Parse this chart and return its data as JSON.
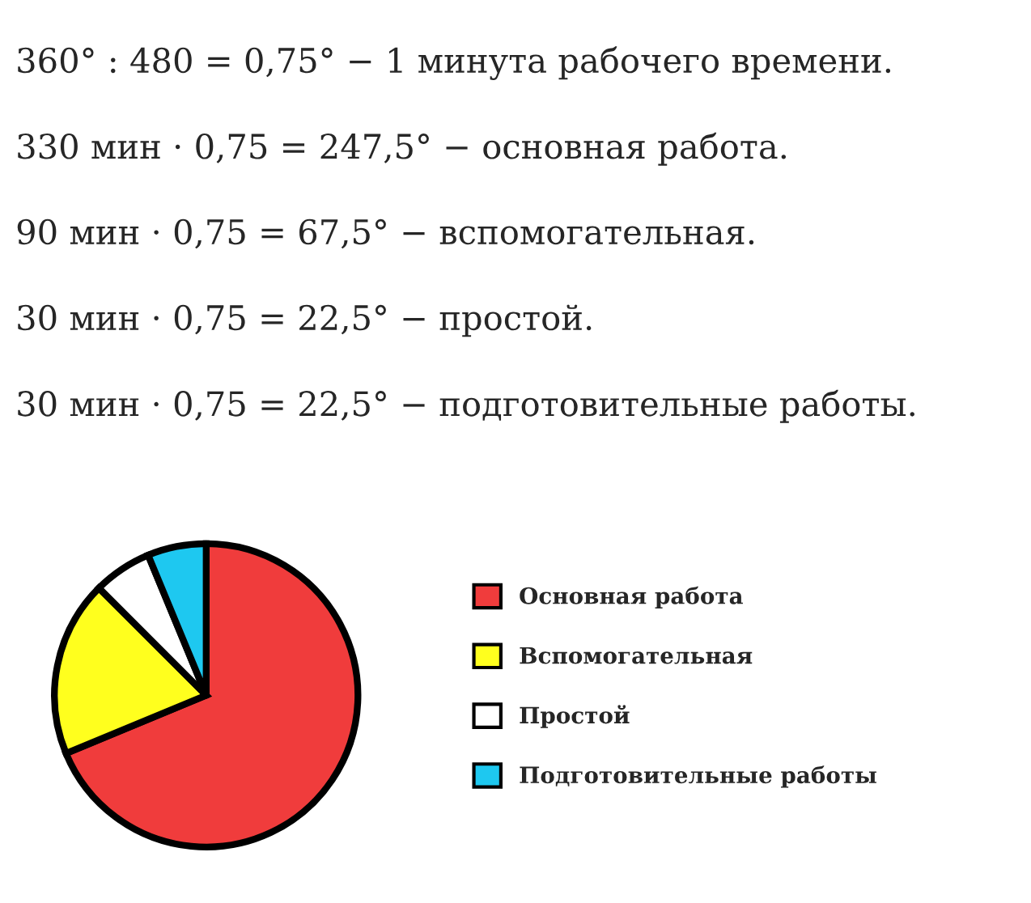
{
  "chart_data": {
    "type": "pie",
    "categories": [
      "Основная работа",
      "Вспомогательная",
      "Простой",
      "Подготовительные работы"
    ],
    "values": [
      68.75,
      18.75,
      6.25,
      6.25
    ],
    "colors": [
      "#f03c3c",
      "#ffff1e",
      "#ffffff",
      "#1ec8f0"
    ],
    "legend": "right",
    "annotations": [
      "360° : 480 = 0,75° − 1 минута рабочего времени.",
      "330 мин · 0,75 = 247,5° − основная работа.",
      "90 мин · 0,75 = 67,5° − вспомогательная.",
      "30 мин · 0,75 = 22,5° − простой.",
      "30 мин · 0,75 = 22,5° − подготовительные работы."
    ]
  }
}
